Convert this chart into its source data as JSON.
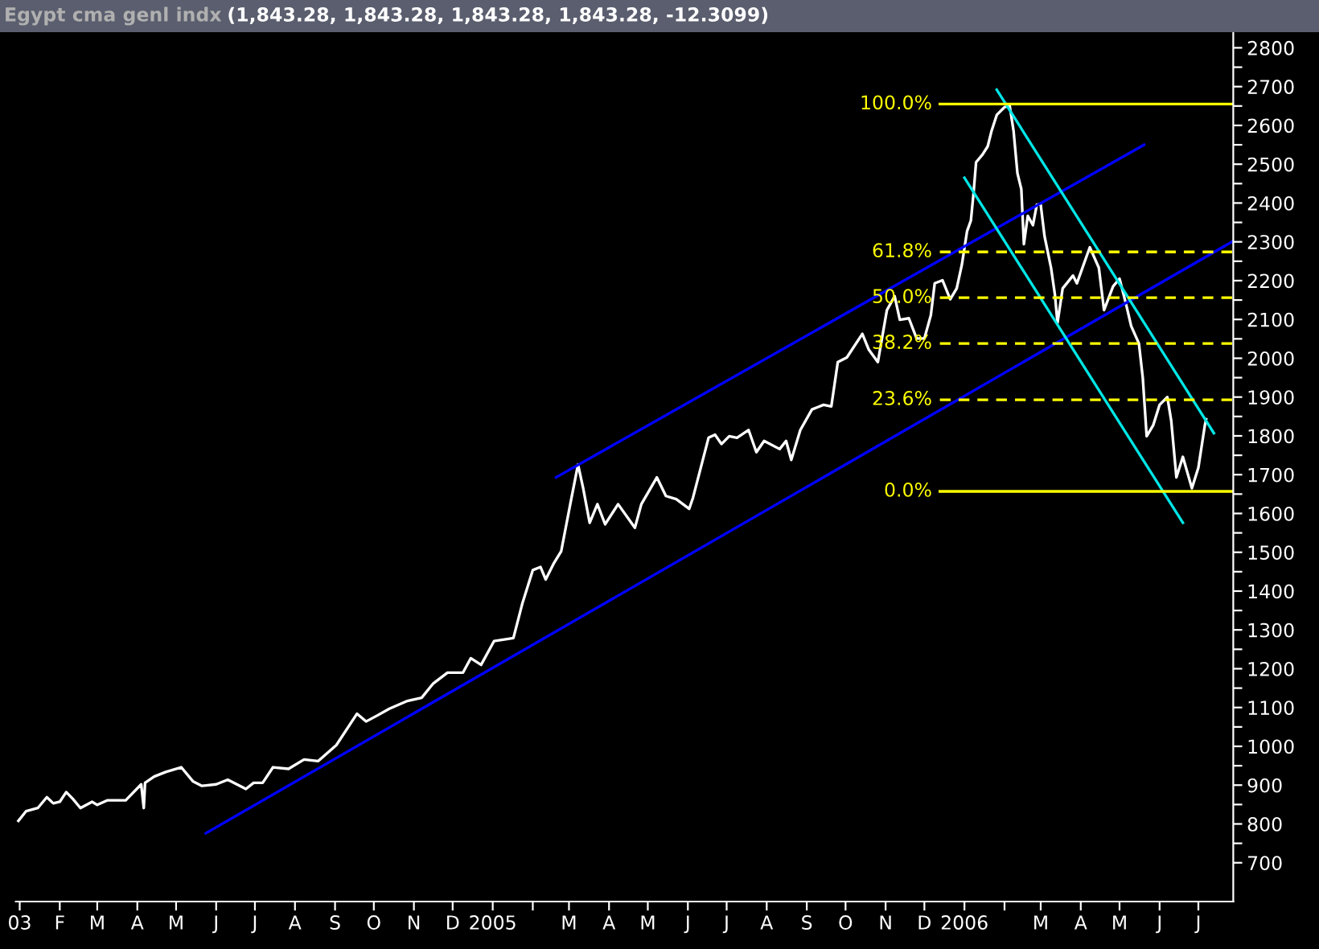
{
  "chart_data": {
    "type": "line",
    "title": "Egypt cma genl indx",
    "subtitle": "(1,843.28, 1,843.28, 1,843.28, 1,843.28, -12.3099)",
    "xlim": [
      "2003-12-29",
      "2006-07-28"
    ],
    "xticks": [
      {
        "value": "2004-01-01",
        "label": "03"
      },
      {
        "value": "2004-02-01",
        "label": "F"
      },
      {
        "value": "2004-03-01",
        "label": "M"
      },
      {
        "value": "2004-04-01",
        "label": "A"
      },
      {
        "value": "2004-05-01",
        "label": "M"
      },
      {
        "value": "2004-06-01",
        "label": "J"
      },
      {
        "value": "2004-07-01",
        "label": "J"
      },
      {
        "value": "2004-08-01",
        "label": "A"
      },
      {
        "value": "2004-09-01",
        "label": "S"
      },
      {
        "value": "2004-10-01",
        "label": "O"
      },
      {
        "value": "2004-11-01",
        "label": "N"
      },
      {
        "value": "2004-12-01",
        "label": "D"
      },
      {
        "value": "2005-01-01",
        "label": "2005"
      },
      {
        "value": "2005-02-01",
        "label": null
      },
      {
        "value": "2005-03-01",
        "label": "M"
      },
      {
        "value": "2005-04-01",
        "label": "A"
      },
      {
        "value": "2005-05-01",
        "label": "M"
      },
      {
        "value": "2005-06-01",
        "label": "J"
      },
      {
        "value": "2005-07-01",
        "label": "J"
      },
      {
        "value": "2005-08-01",
        "label": "A"
      },
      {
        "value": "2005-09-01",
        "label": "S"
      },
      {
        "value": "2005-10-01",
        "label": "O"
      },
      {
        "value": "2005-11-01",
        "label": "N"
      },
      {
        "value": "2005-12-01",
        "label": "D"
      },
      {
        "value": "2006-01-01",
        "label": "2006"
      },
      {
        "value": "2006-02-01",
        "label": null
      },
      {
        "value": "2006-03-01",
        "label": "M"
      },
      {
        "value": "2006-04-01",
        "label": "A"
      },
      {
        "value": "2006-05-01",
        "label": "M"
      },
      {
        "value": "2006-06-01",
        "label": "J"
      },
      {
        "value": "2006-07-01",
        "label": "J"
      }
    ],
    "ylim": [
      600,
      2840
    ],
    "yticks": [
      700,
      {
        "value": 750,
        "label": null
      },
      800,
      {
        "value": 850,
        "label": null
      },
      900,
      {
        "value": 950,
        "label": null
      },
      1000,
      {
        "value": 1050,
        "label": null
      },
      1100,
      {
        "value": 1150,
        "label": null
      },
      1200,
      {
        "value": 1250,
        "label": null
      },
      1300,
      {
        "value": 1350,
        "label": null
      },
      1400,
      {
        "value": 1450,
        "label": null
      },
      1500,
      {
        "value": 1550,
        "label": null
      },
      1600,
      {
        "value": 1650,
        "label": null
      },
      1700,
      {
        "value": 1750,
        "label": null
      },
      1800,
      {
        "value": 1850,
        "label": null
      },
      1900,
      {
        "value": 1950,
        "label": null
      },
      2000,
      {
        "value": 2050,
        "label": null
      },
      2100,
      {
        "value": 2150,
        "label": null
      },
      2200,
      {
        "value": 2250,
        "label": null
      },
      2300,
      {
        "value": 2350,
        "label": null
      },
      2400,
      {
        "value": 2450,
        "label": null
      },
      2500,
      {
        "value": 2550,
        "label": null
      },
      2600,
      {
        "value": 2650,
        "label": null
      },
      2700,
      {
        "value": 2750,
        "label": null
      },
      2800
    ],
    "grid": false,
    "legend": false,
    "marker": "none",
    "series": [
      {
        "color": "#ffffff",
        "line_style": "solid",
        "x": [
          "2003-12-31",
          "2004-01-06",
          "2004-01-15",
          "2004-01-22",
          "2004-01-27",
          "2004-02-01",
          "2004-02-06",
          "2004-02-11",
          "2004-02-17",
          "2004-02-26",
          "2004-03-01",
          "2004-03-09",
          "2004-03-23",
          "2004-04-04",
          "2004-04-06",
          "2004-04-07",
          "2004-04-14",
          "2004-04-23",
          "2004-05-05",
          "2004-05-14",
          "2004-05-21",
          "2004-06-01",
          "2004-06-10",
          "2004-06-24",
          "2004-06-30",
          "2004-07-07",
          "2004-07-15",
          "2004-07-27",
          "2004-08-08",
          "2004-08-19",
          "2004-09-02",
          "2004-09-18",
          "2004-09-25",
          "2004-10-04",
          "2004-10-13",
          "2004-10-27",
          "2004-11-07",
          "2004-11-16",
          "2004-11-27",
          "2004-12-09",
          "2004-12-15",
          "2004-12-23",
          "2005-01-02",
          "2005-01-17",
          "2005-01-24",
          "2005-02-01",
          "2005-02-07",
          "2005-02-11",
          "2005-02-17",
          "2005-02-23",
          "2005-03-02",
          "2005-03-08",
          "2005-03-12",
          "2005-03-17",
          "2005-03-23",
          "2005-03-29",
          "2005-04-08",
          "2005-04-21",
          "2005-04-26",
          "2005-05-08",
          "2005-05-15",
          "2005-05-23",
          "2005-06-02",
          "2005-06-05",
          "2005-06-17",
          "2005-06-22",
          "2005-06-27",
          "2005-07-03",
          "2005-07-09",
          "2005-07-18",
          "2005-07-24",
          "2005-07-30",
          "2005-08-11",
          "2005-08-16",
          "2005-08-20",
          "2005-08-27",
          "2005-09-05",
          "2005-09-14",
          "2005-09-20",
          "2005-09-25",
          "2005-10-02",
          "2005-10-14",
          "2005-10-19",
          "2005-10-26",
          "2005-11-02",
          "2005-11-08",
          "2005-11-12",
          "2005-11-19",
          "2005-11-25",
          "2005-12-01",
          "2005-12-06",
          "2005-12-09",
          "2005-12-15",
          "2005-12-21",
          "2005-12-26",
          "2005-12-30",
          "2006-01-03",
          "2006-01-06",
          "2006-01-08",
          "2006-01-10",
          "2006-01-15",
          "2006-01-19",
          "2006-01-22",
          "2006-01-26",
          "2006-02-01",
          "2006-02-05",
          "2006-02-08",
          "2006-02-11",
          "2006-02-14",
          "2006-02-16",
          "2006-02-19",
          "2006-02-23",
          "2006-02-26",
          "2006-03-01",
          "2006-03-04",
          "2006-03-09",
          "2006-03-12",
          "2006-03-14",
          "2006-03-18",
          "2006-03-26",
          "2006-03-29",
          "2006-04-08",
          "2006-04-15",
          "2006-04-19",
          "2006-04-26",
          "2006-05-01",
          "2006-05-06",
          "2006-05-10",
          "2006-05-16",
          "2006-05-19",
          "2006-05-22",
          "2006-05-27",
          "2006-06-01",
          "2006-06-07",
          "2006-06-10",
          "2006-06-14",
          "2006-06-19",
          "2006-06-26",
          "2006-07-01",
          "2006-07-06",
          "2006-07-07"
        ],
        "values": [
          808,
          833,
          841,
          869,
          853,
          857,
          882,
          865,
          841,
          857,
          849,
          861,
          861,
          902,
          841,
          906,
          922,
          934,
          946,
          910,
          898,
          902,
          914,
          890,
          906,
          906,
          946,
          942,
          966,
          962,
          1003,
          1084,
          1064,
          1080,
          1097,
          1117,
          1125,
          1162,
          1190,
          1190,
          1227,
          1210,
          1271,
          1279,
          1369,
          1454,
          1462,
          1430,
          1470,
          1503,
          1624,
          1726,
          1665,
          1576,
          1624,
          1572,
          1624,
          1563,
          1624,
          1693,
          1645,
          1637,
          1612,
          1641,
          1795,
          1803,
          1779,
          1799,
          1795,
          1815,
          1758,
          1787,
          1766,
          1787,
          1738,
          1815,
          1868,
          1880,
          1876,
          1990,
          2002,
          2063,
          2022,
          1990,
          2124,
          2160,
          2099,
          2103,
          2051,
          2051,
          2111,
          2193,
          2201,
          2152,
          2180,
          2241,
          2327,
          2355,
          2424,
          2505,
          2525,
          2546,
          2586,
          2627,
          2647,
          2651,
          2586,
          2477,
          2436,
          2294,
          2367,
          2343,
          2396,
          2396,
          2314,
          2233,
          2164,
          2091,
          2180,
          2213,
          2193,
          2286,
          2233,
          2124,
          2185,
          2205,
          2140,
          2083,
          2038,
          1949,
          1799,
          1827,
          1880,
          1900,
          1839,
          1693,
          1746,
          1665,
          1718,
          1827,
          1843
        ]
      },
      {
        "color": "#0000ff",
        "line_style": "solid",
        "x": [
          "2004-05-24",
          "2006-07-28"
        ],
        "values": [
          776,
          2302
        ]
      },
      {
        "color": "#0000ff",
        "line_style": "solid",
        "x": [
          "2005-02-19",
          "2006-05-20"
        ],
        "values": [
          1693,
          2550
        ]
      },
      {
        "color": "#00e5e5",
        "line_style": "solid",
        "x": [
          "2006-01-26",
          "2006-07-13"
        ],
        "values": [
          2692,
          1807
        ]
      },
      {
        "color": "#00e5e5",
        "line_style": "solid",
        "x": [
          "2006-01-01",
          "2006-06-19"
        ],
        "values": [
          2465,
          1576
        ]
      },
      {
        "name": "100.0%",
        "color": "#ffff00",
        "line_style": "solid",
        "x": [
          "2005-12-13",
          "2006-07-28"
        ],
        "values": [
          2655,
          2655
        ]
      },
      {
        "name": "61.8%",
        "color": "#ffff00",
        "line_style": "dashed",
        "x": [
          "2005-12-13",
          "2006-07-28"
        ],
        "values": [
          2274,
          2274
        ]
      },
      {
        "name": "50.0%",
        "color": "#ffff00",
        "line_style": "dashed",
        "x": [
          "2005-12-13",
          "2006-07-28"
        ],
        "values": [
          2156,
          2156
        ]
      },
      {
        "name": "38.2%",
        "color": "#ffff00",
        "line_style": "dashed",
        "x": [
          "2005-12-13",
          "2006-07-28"
        ],
        "values": [
          2038,
          2038
        ]
      },
      {
        "name": "23.6%",
        "color": "#ffff00",
        "line_style": "dashed",
        "x": [
          "2005-12-13",
          "2006-07-28"
        ],
        "values": [
          1893,
          1893
        ]
      },
      {
        "name": "0.0%",
        "color": "#ffff00",
        "line_style": "solid",
        "x": [
          "2005-12-13",
          "2006-07-28"
        ],
        "values": [
          1657,
          1657
        ]
      }
    ]
  }
}
